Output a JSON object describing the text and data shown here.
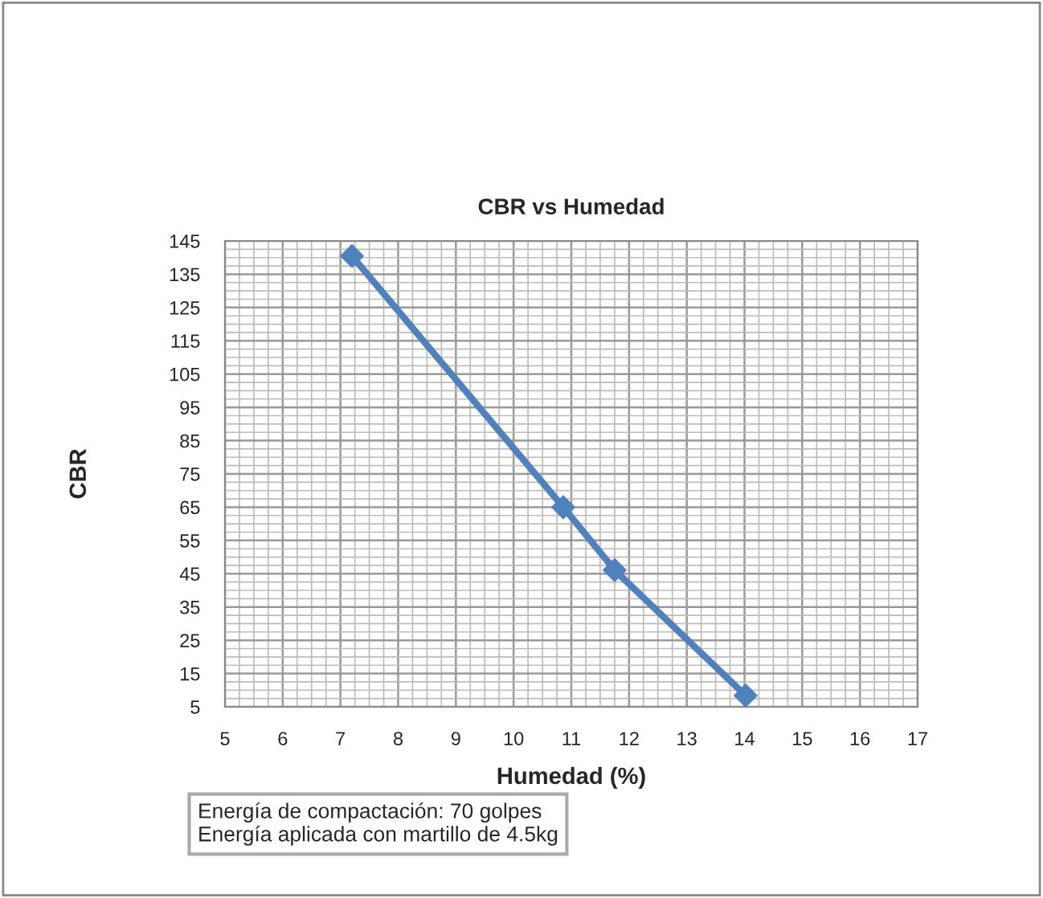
{
  "chart_data": {
    "type": "line",
    "title": "CBR vs Humedad",
    "xlabel": "Humedad (%)",
    "ylabel": "CBR",
    "x": [
      7.2,
      10.86,
      11.75,
      14.02
    ],
    "series": [
      {
        "color": "#4f81bd",
        "values": [
          140.5,
          65,
          46.1,
          8.4
        ]
      }
    ],
    "xlim": [
      5,
      17
    ],
    "xticks": [
      5,
      6,
      7,
      8,
      9,
      10,
      11,
      12,
      13,
      14,
      15,
      16,
      17
    ],
    "ylim": [
      5,
      145
    ],
    "yticks": [
      5,
      15,
      25,
      35,
      45,
      55,
      65,
      75,
      85,
      95,
      105,
      115,
      125,
      135,
      145
    ],
    "grid": true,
    "marker": "diamond",
    "line_style": "solid",
    "legend": false,
    "annotations": [
      "Energía de compactación: 70 golpes\nEnergía aplicada con martillo de 4.5kg"
    ]
  }
}
